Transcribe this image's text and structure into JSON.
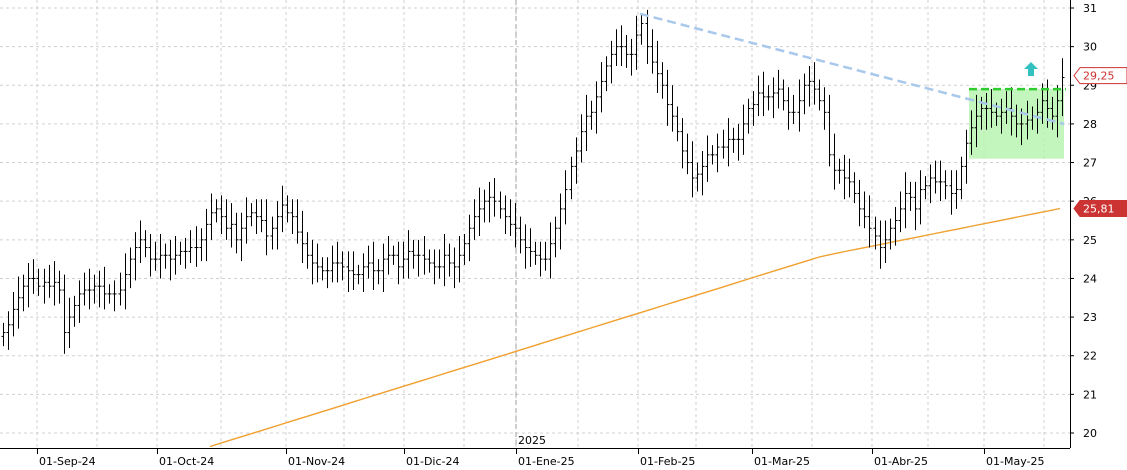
{
  "chart_data": {
    "type": "ohlc",
    "title": "",
    "year_marker": "2025",
    "x_tick_labels": [
      "01-Sep-24",
      "01-Oct-24",
      "01-Nov-24",
      "01-Dic-24",
      "01-Ene-25",
      "01-Feb-25",
      "01-Mar-25",
      "01-Abr-25",
      "01-May-25"
    ],
    "y_tick_labels": [
      "20",
      "21",
      "22",
      "23",
      "24",
      "25",
      "26",
      "27",
      "28",
      "29",
      "30",
      "31"
    ],
    "ylim": [
      19.6,
      31.2
    ],
    "grid": true,
    "price_badge": {
      "label": "29,25",
      "value": 29.25,
      "color": "#cc3333"
    },
    "ma_badge": {
      "label": "25,81",
      "value": 25.81,
      "color": "#cc3333"
    },
    "moving_average": {
      "color": "#f0a030",
      "start_value": 19.65,
      "end_value": 25.81
    },
    "trendline": {
      "color": "#a8c8ec",
      "from_date": "2025-02-03",
      "from_value": 30.85,
      "to_date": "2025-05-27",
      "to_value": 28.0
    },
    "resistance": {
      "color": "#2ecc2e",
      "value": 28.9,
      "from_date": "2025-04-21"
    },
    "range_box": {
      "color": "#b8f4b0",
      "from_date": "2025-04-21",
      "to_date": "2025-05-27",
      "low": 27.1,
      "high": 28.9
    },
    "arrow": {
      "color": "#33c0c0",
      "direction": "up"
    },
    "series_color": "#000000",
    "closes": [
      22.6,
      22.8,
      23.2,
      23.5,
      23.8,
      24.0,
      24.0,
      23.8,
      23.9,
      23.8,
      23.9,
      23.7,
      22.6,
      23.0,
      23.3,
      23.6,
      23.7,
      23.7,
      23.8,
      23.8,
      23.6,
      23.6,
      23.6,
      23.7,
      24.1,
      24.5,
      24.8,
      25.0,
      24.8,
      24.5,
      24.5,
      24.6,
      24.6,
      24.5,
      24.6,
      24.7,
      24.7,
      24.8,
      24.8,
      25.0,
      25.4,
      25.7,
      25.8,
      25.6,
      25.3,
      25.4,
      25.0,
      25.3,
      25.6,
      25.7,
      25.6,
      25.5,
      25.1,
      25.3,
      25.6,
      25.9,
      25.7,
      25.6,
      25.2,
      24.9,
      24.6,
      24.4,
      24.3,
      24.2,
      24.2,
      24.4,
      24.4,
      24.3,
      24.2,
      24.1,
      24.1,
      24.3,
      24.4,
      24.2,
      24.2,
      24.5,
      24.6,
      24.6,
      24.3,
      24.5,
      24.7,
      24.6,
      24.6,
      24.5,
      24.4,
      24.3,
      24.3,
      24.6,
      24.4,
      24.3,
      24.6,
      24.9,
      25.3,
      25.6,
      25.8,
      26.0,
      26.1,
      26.0,
      25.8,
      25.6,
      25.4,
      25.3,
      25.0,
      24.8,
      24.7,
      24.6,
      24.5,
      24.5,
      24.9,
      25.3,
      25.8,
      26.3,
      26.9,
      27.3,
      27.8,
      28.2,
      28.3,
      28.7,
      29.1,
      29.5,
      29.8,
      30.0,
      30.0,
      29.8,
      29.8,
      30.3,
      30.6,
      30.0,
      29.6,
      29.3,
      29.0,
      28.5,
      28.2,
      27.8,
      27.3,
      27.0,
      26.6,
      26.7,
      26.9,
      27.2,
      27.2,
      27.4,
      27.4,
      27.6,
      27.6,
      27.6,
      28.0,
      28.4,
      28.5,
      28.8,
      28.7,
      28.7,
      28.8,
      28.9,
      28.6,
      28.3,
      28.3,
      28.6,
      29.0,
      29.1,
      28.9,
      28.6,
      28.3,
      27.2,
      26.8,
      26.8,
      26.6,
      26.5,
      26.2,
      25.8,
      25.6,
      25.3,
      25.1,
      24.8,
      25.0,
      25.3,
      25.5,
      25.8,
      26.2,
      26.1,
      25.8,
      26.3,
      26.4,
      26.6,
      26.5,
      26.5,
      26.4,
      26.2,
      26.3,
      26.9,
      27.5,
      27.9,
      28.2,
      28.4,
      28.4,
      28.3,
      28.2,
      28.3,
      28.4,
      28.2,
      28.0,
      28.0,
      28.1,
      28.2,
      28.3,
      28.6,
      28.4,
      28.2,
      28.6,
      29.2
    ]
  },
  "xaxis": {
    "labels": [
      "01-Sep-24",
      "01-Oct-24",
      "01-Nov-24",
      "01-Dic-24",
      "01-Ene-25",
      "01-Feb-25",
      "01-Mar-25",
      "01-Abr-25",
      "01-May-25"
    ],
    "year": "2025"
  },
  "yaxis": {
    "labels": [
      "20",
      "21",
      "22",
      "23",
      "24",
      "25",
      "26",
      "27",
      "28",
      "29",
      "30",
      "31"
    ]
  }
}
